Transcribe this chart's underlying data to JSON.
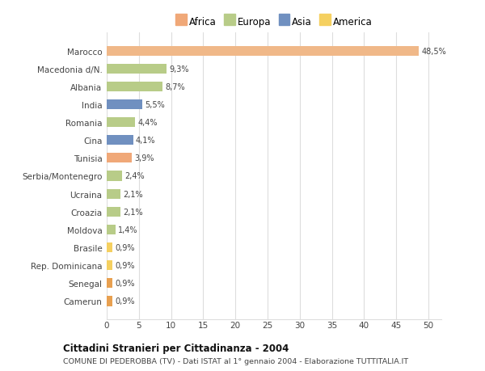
{
  "categories": [
    "Camerun",
    "Senegal",
    "Rep. Dominicana",
    "Brasile",
    "Moldova",
    "Croazia",
    "Ucraina",
    "Serbia/Montenegro",
    "Tunisia",
    "Cina",
    "Romania",
    "India",
    "Albania",
    "Macedonia d/N.",
    "Marocco"
  ],
  "values": [
    0.9,
    0.9,
    0.9,
    0.9,
    1.4,
    2.1,
    2.1,
    2.4,
    3.9,
    4.1,
    4.4,
    5.5,
    8.7,
    9.3,
    48.5
  ],
  "labels": [
    "0,9%",
    "0,9%",
    "0,9%",
    "0,9%",
    "1,4%",
    "2,1%",
    "2,1%",
    "2,4%",
    "3,9%",
    "4,1%",
    "4,4%",
    "5,5%",
    "8,7%",
    "9,3%",
    "48,5%"
  ],
  "colors": [
    "#e8a050",
    "#e8a050",
    "#f5d060",
    "#f5d060",
    "#b8cc88",
    "#b8cc88",
    "#b8cc88",
    "#b8cc88",
    "#f0a878",
    "#7090c0",
    "#b8cc88",
    "#7090c0",
    "#b8cc88",
    "#b8cc88",
    "#f0b888"
  ],
  "legend_labels": [
    "Africa",
    "Europa",
    "Asia",
    "America"
  ],
  "legend_colors": [
    "#f0a878",
    "#b8cc88",
    "#7090c0",
    "#f5d060"
  ],
  "title": "Cittadini Stranieri per Cittadinanza - 2004",
  "subtitle": "COMUNE DI PEDEROBBA (TV) - Dati ISTAT al 1° gennaio 2004 - Elaborazione TUTTITALIA.IT",
  "xlim": [
    0,
    52
  ],
  "xticks": [
    0,
    5,
    10,
    15,
    20,
    25,
    30,
    35,
    40,
    45,
    50
  ],
  "background_color": "#ffffff",
  "bar_height": 0.55,
  "grid_color": "#dddddd"
}
